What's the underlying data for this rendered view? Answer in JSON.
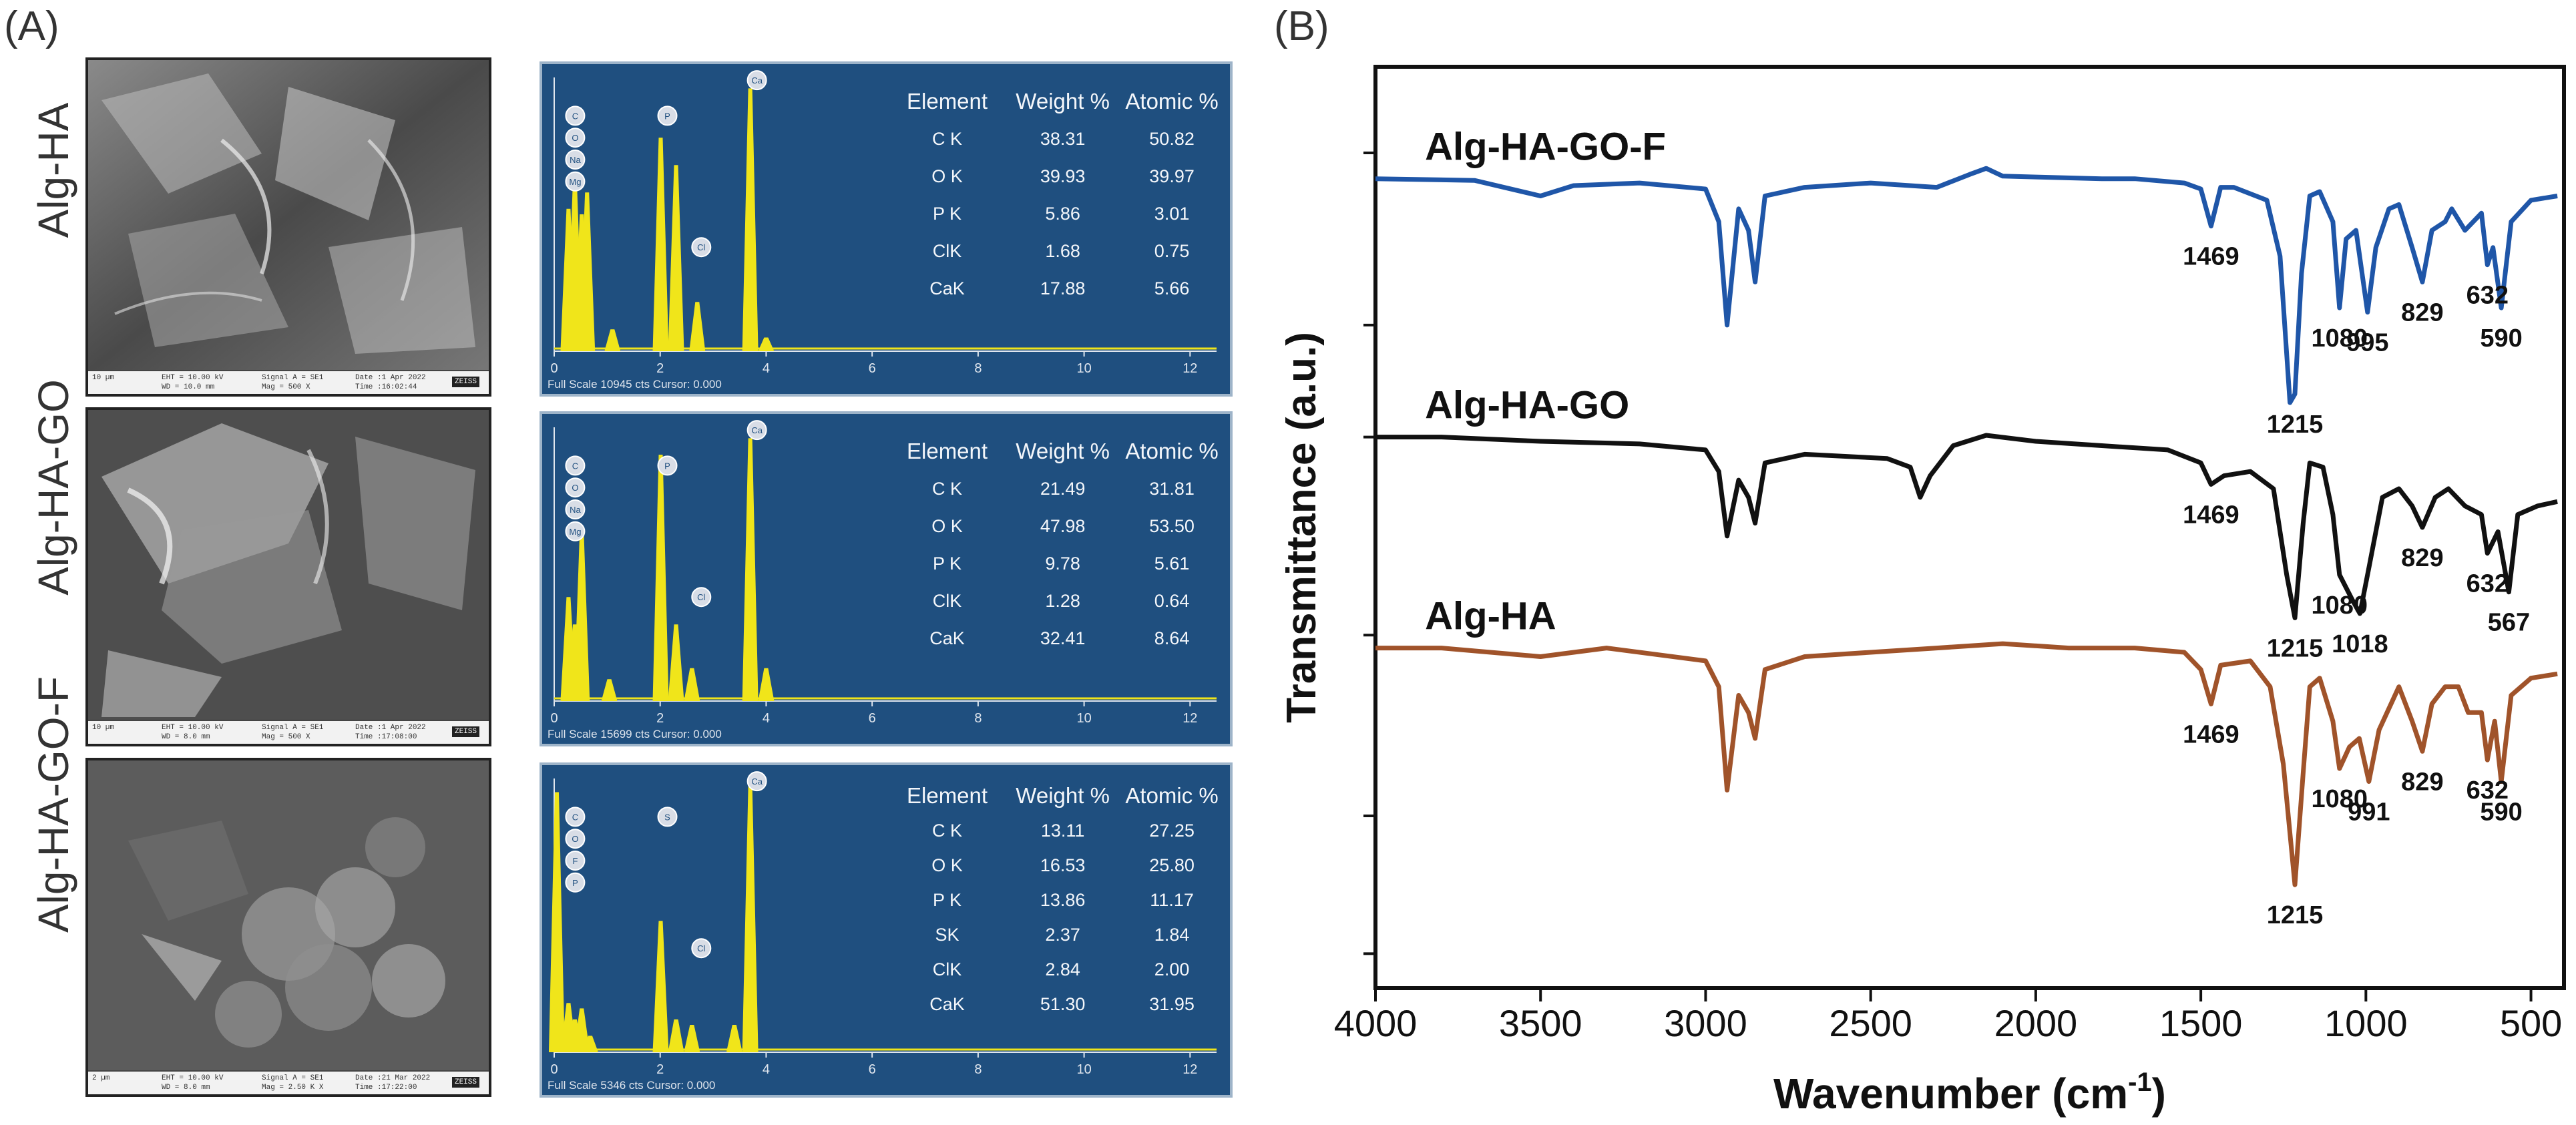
{
  "panels": {
    "a_label": "(A)",
    "b_label": "(B)"
  },
  "sem_rows": [
    {
      "label": "Alg-HA",
      "bar": [
        "10 µm",
        "EHT = 10.00 kV",
        "WD = 10.0 mm",
        "Signal A = SE1",
        "Mag = 500 X",
        "Date :1 Apr 2022",
        "Time :16:02:44",
        "ZEISS"
      ],
      "eds": {
        "header": [
          "Element",
          "Weight %",
          "Atomic %"
        ],
        "rows": [
          [
            "C K",
            "38.31",
            "50.82"
          ],
          [
            "O K",
            "39.93",
            "39.97"
          ],
          [
            "P K",
            "5.86",
            "3.01"
          ],
          [
            "ClK",
            "1.68",
            "0.75"
          ],
          [
            "CaK",
            "17.88",
            "5.66"
          ]
        ],
        "footer": "Full Scale 10945 cts Cursor: 0.000",
        "peak_labels": [
          "C",
          "O",
          "Na",
          "Mg",
          "P",
          "Cl",
          "Ca"
        ]
      }
    },
    {
      "label": "Alg-HA-GO",
      "bar": [
        "10 µm",
        "EHT = 10.00 kV",
        "WD = 8.0 mm",
        "Signal A = SE1",
        "Mag = 500 X",
        "Date :1 Apr 2022",
        "Time :17:08:00",
        "ZEISS"
      ],
      "eds": {
        "header": [
          "Element",
          "Weight %",
          "Atomic %"
        ],
        "rows": [
          [
            "C K",
            "21.49",
            "31.81"
          ],
          [
            "O K",
            "47.98",
            "53.50"
          ],
          [
            "P K",
            "9.78",
            "5.61"
          ],
          [
            "ClK",
            "1.28",
            "0.64"
          ],
          [
            "CaK",
            "32.41",
            "8.64"
          ]
        ],
        "footer": "Full Scale 15699 cts Cursor: 0.000",
        "peak_labels": [
          "C",
          "O",
          "Na",
          "Mg",
          "P",
          "Cl",
          "Ca"
        ]
      }
    },
    {
      "label": "Alg-HA-GO-F",
      "bar": [
        "2 µm",
        "EHT = 10.00 kV",
        "WD = 8.0 mm",
        "Signal A = SE1",
        "Mag = 2.50 K X",
        "Date :21 Mar 2022",
        "Time :17:22:00",
        "ZEISS"
      ],
      "eds": {
        "header": [
          "Element",
          "Weight %",
          "Atomic %"
        ],
        "rows": [
          [
            "C K",
            "13.11",
            "27.25"
          ],
          [
            "O K",
            "16.53",
            "25.80"
          ],
          [
            "P K",
            "13.86",
            "11.17"
          ],
          [
            "SK",
            "2.37",
            "1.84"
          ],
          [
            "ClK",
            "2.84",
            "2.00"
          ],
          [
            "CaK",
            "51.30",
            "31.95"
          ]
        ],
        "footer": "Full Scale 5346 cts Cursor: 0.000",
        "peak_labels": [
          "C",
          "O",
          "F",
          "P",
          "S",
          "Cl",
          "Ca"
        ]
      }
    }
  ],
  "eds_axis_ticks": [
    "0",
    "2",
    "4",
    "6",
    "8",
    "10",
    "12"
  ],
  "chart_data": {
    "type": "line",
    "xlabel": "Wavenumber (cm",
    "xlabel_sup": "-1",
    "xlabel_close": ")",
    "ylabel": "Transmittance (a.u.)",
    "xlim": [
      4000,
      400
    ],
    "x_ticks": [
      4000,
      3500,
      3000,
      2500,
      2000,
      1500,
      1000,
      500
    ],
    "x_tick_labels": [
      "4000",
      "3500",
      "3000",
      "2500",
      "2000",
      "1500",
      "1000",
      "500"
    ],
    "grid": false,
    "series": [
      {
        "name": "Alg-HA-GO-F",
        "color": "#1f56a8",
        "baseline": 0.0,
        "label_x": 3850,
        "points": [
          [
            4000,
            0.0
          ],
          [
            3700,
            -0.02
          ],
          [
            3500,
            -0.2
          ],
          [
            3400,
            -0.08
          ],
          [
            3200,
            -0.05
          ],
          [
            3000,
            -0.12
          ],
          [
            2960,
            -0.5
          ],
          [
            2935,
            -1.7
          ],
          [
            2900,
            -0.35
          ],
          [
            2870,
            -0.6
          ],
          [
            2850,
            -1.2
          ],
          [
            2820,
            -0.2
          ],
          [
            2700,
            -0.1
          ],
          [
            2500,
            -0.05
          ],
          [
            2300,
            -0.1
          ],
          [
            2200,
            0.05
          ],
          [
            2150,
            0.12
          ],
          [
            2100,
            0.03
          ],
          [
            2000,
            0.02
          ],
          [
            1800,
            0.0
          ],
          [
            1700,
            0.0
          ],
          [
            1550,
            -0.05
          ],
          [
            1500,
            -0.12
          ],
          [
            1469,
            -0.55
          ],
          [
            1440,
            -0.1
          ],
          [
            1400,
            -0.1
          ],
          [
            1300,
            -0.25
          ],
          [
            1260,
            -0.9
          ],
          [
            1230,
            -2.6
          ],
          [
            1215,
            -2.5
          ],
          [
            1195,
            -1.1
          ],
          [
            1170,
            -0.2
          ],
          [
            1140,
            -0.15
          ],
          [
            1100,
            -0.5
          ],
          [
            1080,
            -1.5
          ],
          [
            1060,
            -0.7
          ],
          [
            1030,
            -0.6
          ],
          [
            995,
            -1.55
          ],
          [
            970,
            -0.8
          ],
          [
            930,
            -0.35
          ],
          [
            900,
            -0.3
          ],
          [
            860,
            -0.8
          ],
          [
            829,
            -1.2
          ],
          [
            800,
            -0.6
          ],
          [
            760,
            -0.5
          ],
          [
            740,
            -0.35
          ],
          [
            700,
            -0.6
          ],
          [
            650,
            -0.4
          ],
          [
            632,
            -1.0
          ],
          [
            615,
            -0.8
          ],
          [
            590,
            -1.5
          ],
          [
            560,
            -0.5
          ],
          [
            500,
            -0.25
          ],
          [
            420,
            -0.2
          ]
        ],
        "peaks": [
          [
            1469,
            "1469"
          ],
          [
            1215,
            "1215"
          ],
          [
            1080,
            "1080"
          ],
          [
            995,
            "995"
          ],
          [
            829,
            "829"
          ],
          [
            632,
            "632"
          ],
          [
            590,
            "590"
          ]
        ]
      },
      {
        "name": "Alg-HA-GO",
        "color": "#111111",
        "baseline": -3.0,
        "label_x": 3850,
        "points": [
          [
            4000,
            -3.0
          ],
          [
            3800,
            -3.0
          ],
          [
            3500,
            -3.05
          ],
          [
            3200,
            -3.08
          ],
          [
            3000,
            -3.15
          ],
          [
            2960,
            -3.4
          ],
          [
            2935,
            -4.15
          ],
          [
            2900,
            -3.5
          ],
          [
            2870,
            -3.7
          ],
          [
            2850,
            -4.0
          ],
          [
            2820,
            -3.3
          ],
          [
            2700,
            -3.2
          ],
          [
            2450,
            -3.25
          ],
          [
            2380,
            -3.35
          ],
          [
            2350,
            -3.7
          ],
          [
            2320,
            -3.45
          ],
          [
            2250,
            -3.1
          ],
          [
            2150,
            -2.98
          ],
          [
            2000,
            -3.05
          ],
          [
            1800,
            -3.1
          ],
          [
            1600,
            -3.15
          ],
          [
            1500,
            -3.3
          ],
          [
            1469,
            -3.55
          ],
          [
            1430,
            -3.45
          ],
          [
            1350,
            -3.4
          ],
          [
            1280,
            -3.6
          ],
          [
            1240,
            -4.6
          ],
          [
            1215,
            -5.1
          ],
          [
            1190,
            -4.0
          ],
          [
            1170,
            -3.3
          ],
          [
            1130,
            -3.35
          ],
          [
            1100,
            -3.9
          ],
          [
            1080,
            -4.6
          ],
          [
            1040,
            -4.9
          ],
          [
            1018,
            -5.05
          ],
          [
            990,
            -4.5
          ],
          [
            950,
            -3.7
          ],
          [
            900,
            -3.6
          ],
          [
            860,
            -3.8
          ],
          [
            829,
            -4.05
          ],
          [
            790,
            -3.7
          ],
          [
            750,
            -3.6
          ],
          [
            700,
            -3.8
          ],
          [
            650,
            -3.9
          ],
          [
            632,
            -4.35
          ],
          [
            600,
            -4.1
          ],
          [
            567,
            -4.8
          ],
          [
            540,
            -3.9
          ],
          [
            480,
            -3.8
          ],
          [
            420,
            -3.75
          ]
        ],
        "peaks": [
          [
            1469,
            "1469"
          ],
          [
            1215,
            "1215"
          ],
          [
            1080,
            "1080"
          ],
          [
            1018,
            "1018"
          ],
          [
            829,
            "829"
          ],
          [
            632,
            "632"
          ],
          [
            567,
            "567"
          ]
        ]
      },
      {
        "name": "Alg-HA",
        "color": "#a0532a",
        "baseline": -5.45,
        "label_x": 3850,
        "points": [
          [
            4000,
            -5.45
          ],
          [
            3800,
            -5.45
          ],
          [
            3500,
            -5.55
          ],
          [
            3300,
            -5.45
          ],
          [
            3000,
            -5.6
          ],
          [
            2960,
            -5.9
          ],
          [
            2935,
            -7.1
          ],
          [
            2900,
            -6.0
          ],
          [
            2870,
            -6.2
          ],
          [
            2850,
            -6.5
          ],
          [
            2820,
            -5.7
          ],
          [
            2700,
            -5.55
          ],
          [
            2500,
            -5.5
          ],
          [
            2300,
            -5.45
          ],
          [
            2100,
            -5.4
          ],
          [
            1900,
            -5.45
          ],
          [
            1700,
            -5.45
          ],
          [
            1550,
            -5.5
          ],
          [
            1500,
            -5.7
          ],
          [
            1469,
            -6.1
          ],
          [
            1440,
            -5.65
          ],
          [
            1350,
            -5.6
          ],
          [
            1290,
            -5.9
          ],
          [
            1250,
            -6.8
          ],
          [
            1215,
            -8.2
          ],
          [
            1190,
            -6.9
          ],
          [
            1170,
            -5.9
          ],
          [
            1140,
            -5.8
          ],
          [
            1100,
            -6.3
          ],
          [
            1080,
            -6.85
          ],
          [
            1050,
            -6.6
          ],
          [
            1020,
            -6.5
          ],
          [
            991,
            -7.0
          ],
          [
            960,
            -6.4
          ],
          [
            900,
            -5.9
          ],
          [
            860,
            -6.3
          ],
          [
            829,
            -6.65
          ],
          [
            800,
            -6.1
          ],
          [
            760,
            -5.9
          ],
          [
            720,
            -5.9
          ],
          [
            690,
            -6.2
          ],
          [
            650,
            -6.2
          ],
          [
            632,
            -6.75
          ],
          [
            610,
            -6.3
          ],
          [
            590,
            -7.0
          ],
          [
            560,
            -6.0
          ],
          [
            500,
            -5.8
          ],
          [
            420,
            -5.75
          ]
        ],
        "peaks": [
          [
            1469,
            "1469"
          ],
          [
            1215,
            "1215"
          ],
          [
            1080,
            "1080"
          ],
          [
            991,
            "991"
          ],
          [
            829,
            "829"
          ],
          [
            632,
            "632"
          ],
          [
            590,
            "590"
          ]
        ]
      }
    ]
  },
  "colors": {
    "eds_bg": "#1f4f7f",
    "eds_peak": "#f0e51a",
    "ftir_blue": "#1f56a8",
    "ftir_black": "#111111",
    "ftir_brown": "#a0532a"
  }
}
